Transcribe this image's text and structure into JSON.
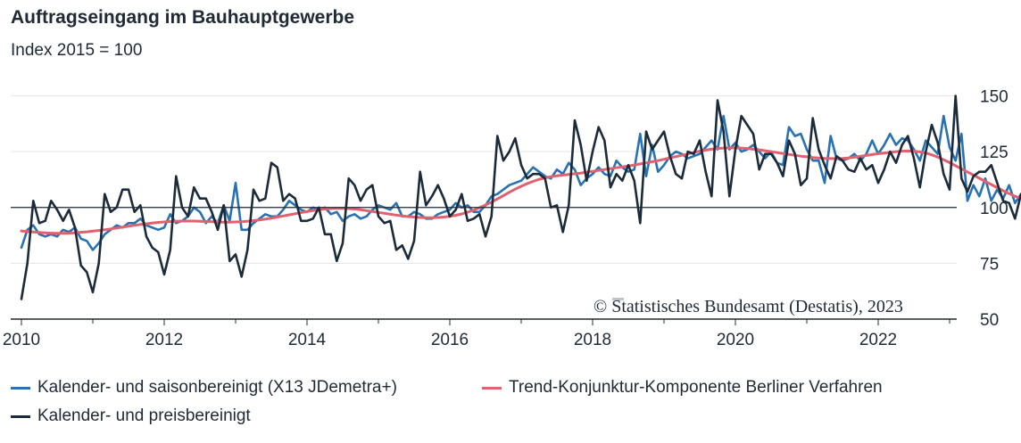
{
  "colors": {
    "seasonal": "#2872b4",
    "trend": "#e2616e",
    "price": "#1c2b3a",
    "grid": "#e3e6ea",
    "axis": "#1f2a36"
  },
  "chart_data": {
    "type": "line",
    "title": "Auftragseingang im Bauhauptgewerbe",
    "subtitle": "Index 2015 = 100",
    "x_start": 2010,
    "x_step_months": 1,
    "xlim": [
      2009.85,
      2023.1
    ],
    "ylim": [
      50,
      157
    ],
    "y_ticks": [
      50,
      75,
      100,
      125,
      150
    ],
    "x_ticks": [
      "2010",
      "2012",
      "2014",
      "2016",
      "2018",
      "2020",
      "2022"
    ],
    "reference_line": 100,
    "grid": true,
    "legend_position": "bottom",
    "copyright": "© Statistisches Bundesamt (Destatis), 2023",
    "series": [
      {
        "name": "Kalender- und saisonbereinigt (X13 JDemetra+)",
        "color": "#2872b4",
        "values": [
          82,
          90,
          92,
          88,
          87,
          88,
          87,
          90,
          89,
          91,
          86,
          85,
          81,
          84,
          88,
          90,
          92,
          91,
          93,
          93,
          95,
          92,
          91,
          90,
          91,
          97,
          93,
          94,
          96,
          100,
          98,
          93,
          96,
          93,
          101,
          94,
          111,
          90,
          90,
          93,
          95,
          97,
          96,
          96,
          99,
          103,
          101,
          99,
          98,
          100,
          99,
          100,
          97,
          98,
          94,
          96,
          97,
          95,
          96,
          99,
          101,
          100,
          99,
          102,
          96,
          96,
          98,
          97,
          95,
          95,
          97,
          98,
          99,
          102,
          100,
          101,
          98,
          98,
          101,
          105,
          106,
          108,
          110,
          111,
          112,
          115,
          118,
          116,
          114,
          113,
          117,
          115,
          120,
          117,
          110,
          113,
          115,
          118,
          115,
          114,
          121,
          118,
          116,
          117,
          133,
          114,
          128,
          116,
          119,
          123,
          125,
          124,
          122,
          123,
          124,
          127,
          130,
          126,
          141,
          126,
          129,
          125,
          126,
          128,
          125,
          122,
          125,
          120,
          119,
          136,
          132,
          133,
          126,
          121,
          121,
          111,
          132,
          122,
          121,
          122,
          124,
          121,
          124,
          130,
          124,
          128,
          133,
          128,
          131,
          130,
          126,
          121,
          130,
          127,
          124,
          141,
          127,
          121,
          133,
          103,
          110,
          105,
          113,
          103,
          108,
          104,
          110,
          102,
          106
        ],
        "label": "Kalender- und saisonbereinigt (X13 JDemetra+)"
      },
      {
        "name": "Trend-Konjunktur-Komponente Berliner Verfahren",
        "color": "#e2616e",
        "values": [
          89.5,
          89.2,
          89.0,
          88.8,
          88.6,
          88.5,
          88.4,
          88.4,
          88.5,
          88.7,
          88.9,
          89.1,
          89.4,
          89.7,
          90.0,
          90.4,
          90.8,
          91.2,
          91.6,
          92.0,
          92.4,
          92.7,
          93.0,
          93.3,
          93.5,
          93.7,
          93.8,
          93.9,
          93.9,
          93.9,
          93.8,
          93.7,
          93.6,
          93.5,
          93.4,
          93.4,
          93.5,
          93.6,
          93.8,
          94.1,
          94.4,
          94.8,
          95.2,
          95.7,
          96.2,
          96.7,
          97.2,
          97.7,
          98.2,
          98.6,
          99.0,
          99.3,
          99.5,
          99.6,
          99.6,
          99.5,
          99.3,
          99.0,
          98.6,
          98.2,
          97.8,
          97.4,
          97.0,
          96.6,
          96.2,
          95.9,
          95.7,
          95.5,
          95.4,
          95.4,
          95.5,
          95.7,
          96.0,
          96.5,
          97.1,
          97.9,
          98.8,
          99.9,
          101.1,
          102.4,
          103.8,
          105.3,
          106.8,
          108.2,
          109.5,
          110.7,
          111.7,
          112.6,
          113.3,
          113.8,
          114.2,
          114.5,
          114.8,
          115.1,
          115.4,
          115.8,
          116.2,
          116.6,
          117.0,
          117.4,
          117.8,
          118.2,
          118.6,
          119.0,
          119.5,
          120.0,
          120.5,
          121.0,
          121.6,
          122.2,
          122.8,
          123.4,
          124.0,
          124.6,
          125.2,
          125.7,
          126.1,
          126.4,
          126.6,
          126.7,
          126.7,
          126.6,
          126.4,
          126.1,
          125.8,
          125.4,
          125.0,
          124.6,
          124.2,
          123.8,
          123.4,
          123.0,
          122.7,
          122.4,
          122.2,
          122.0,
          121.9,
          121.9,
          122.0,
          122.2,
          122.5,
          122.9,
          123.3,
          123.7,
          124.1,
          124.4,
          124.7,
          125.0,
          125.2,
          125.3,
          125.2,
          124.9,
          124.4,
          123.6,
          122.6,
          121.4,
          120.1,
          118.7,
          117.3,
          115.9,
          114.5,
          113.1,
          111.7,
          110.3,
          108.9,
          107.5,
          106.2,
          105.0,
          104.0
        ],
        "label": "Trend-Konjunktur-Komponente Berliner Verfahren"
      },
      {
        "name": "Kalender- und preisbereinigt",
        "color": "#1c2b3a",
        "values": [
          59,
          75,
          103,
          93,
          94,
          103,
          99,
          94,
          99,
          91,
          74,
          71,
          62,
          75,
          106,
          98,
          100,
          108,
          108,
          98,
          101,
          87,
          82,
          80,
          70,
          81,
          114,
          100,
          96,
          109,
          104,
          104,
          98,
          90,
          101,
          76,
          79,
          69,
          81,
          108,
          103,
          104,
          120,
          118,
          103,
          106,
          104,
          94,
          94,
          95,
          100,
          88,
          88,
          76,
          84,
          113,
          110,
          103,
          108,
          110,
          96,
          93,
          94,
          81,
          83,
          77,
          85,
          116,
          101,
          105,
          110,
          104,
          96,
          99,
          106,
          94,
          95,
          97,
          87,
          96,
          132,
          121,
          125,
          131,
          119,
          113,
          115,
          115,
          113,
          100,
          101,
          89,
          101,
          139,
          128,
          112,
          125,
          136,
          130,
          109,
          115,
          112,
          119,
          112,
          93,
          134,
          126,
          130,
          134,
          123,
          115,
          113,
          125,
          124,
          130,
          116,
          105,
          148,
          134,
          105,
          126,
          141,
          137,
          133,
          117,
          124,
          124,
          120,
          114,
          130,
          124,
          110,
          113,
          140,
          126,
          119,
          113,
          123,
          121,
          117,
          116,
          122,
          117,
          119,
          111,
          117,
          125,
          120,
          128,
          132,
          122,
          109,
          125,
          137,
          129,
          115,
          108,
          150,
          113,
          107,
          114,
          116,
          116,
          119,
          111,
          103,
          102,
          95,
          106
        ],
        "label": "Kalender- und preisbereinigt"
      }
    ]
  }
}
